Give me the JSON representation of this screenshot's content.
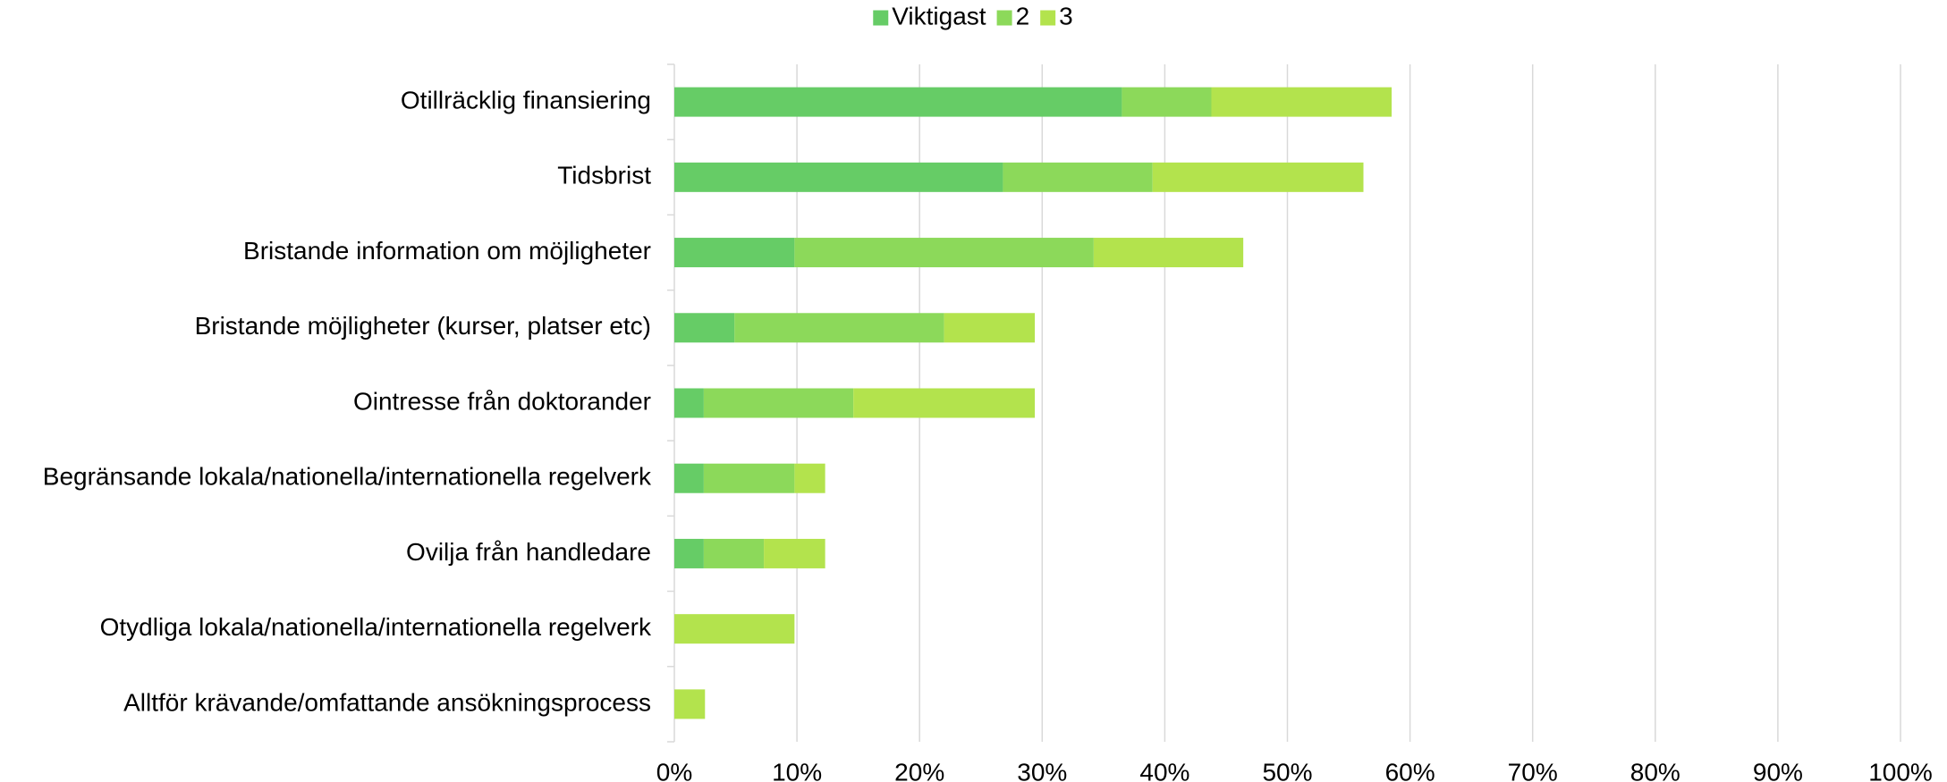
{
  "chart_data": {
    "type": "stacked-bar-horizontal",
    "categories": [
      "Otillräcklig finansiering",
      "Tidsbrist",
      "Bristande information om möjligheter",
      "Bristande möjligheter (kurser, platser etc)",
      "Ointresse från doktorander",
      "Begränsande lokala/nationella/internationella regelverk",
      "Ovilja från handledare",
      "Otydliga lokala/nationella/internationella regelverk",
      "Alltför krävande/omfattande ansökningsprocess"
    ],
    "series": [
      {
        "name": "Viktigast",
        "color": "#66cc66",
        "values": [
          36.5,
          26.8,
          9.8,
          4.9,
          2.4,
          2.4,
          2.4,
          0,
          0
        ]
      },
      {
        "name": "2",
        "color": "#8cd95a",
        "values": [
          7.3,
          12.2,
          24.4,
          17.1,
          12.2,
          7.4,
          4.9,
          0,
          0
        ]
      },
      {
        "name": "3",
        "color": "#b3e34d",
        "values": [
          14.7,
          17.2,
          12.2,
          7.4,
          14.8,
          2.5,
          5.0,
          9.8,
          2.5
        ]
      }
    ],
    "xlim": [
      0,
      100
    ],
    "xticks": [
      {
        "value": 0,
        "label": "0%"
      },
      {
        "value": 10,
        "label": "10%"
      },
      {
        "value": 20,
        "label": "20%"
      },
      {
        "value": 30,
        "label": "30%"
      },
      {
        "value": 40,
        "label": "40%"
      },
      {
        "value": 50,
        "label": "50%"
      },
      {
        "value": 60,
        "label": "60%"
      },
      {
        "value": 70,
        "label": "70%"
      },
      {
        "value": 80,
        "label": "80%"
      },
      {
        "value": 90,
        "label": "90%"
      },
      {
        "value": 100,
        "label": "100%"
      }
    ],
    "grid": true,
    "legend": "top"
  }
}
